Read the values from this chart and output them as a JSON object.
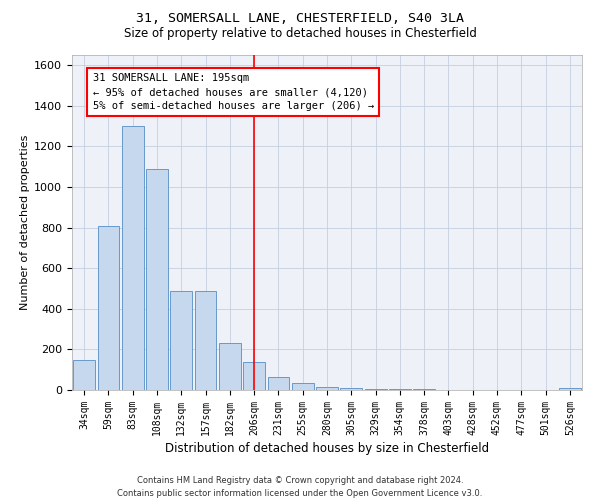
{
  "title1": "31, SOMERSALL LANE, CHESTERFIELD, S40 3LA",
  "title2": "Size of property relative to detached houses in Chesterfield",
  "xlabel": "Distribution of detached houses by size in Chesterfield",
  "ylabel": "Number of detached properties",
  "categories": [
    "34sqm",
    "59sqm",
    "83sqm",
    "108sqm",
    "132sqm",
    "157sqm",
    "182sqm",
    "206sqm",
    "231sqm",
    "255sqm",
    "280sqm",
    "305sqm",
    "329sqm",
    "354sqm",
    "378sqm",
    "403sqm",
    "428sqm",
    "452sqm",
    "477sqm",
    "501sqm",
    "526sqm"
  ],
  "values": [
    150,
    810,
    1300,
    1090,
    490,
    490,
    230,
    140,
    65,
    35,
    15,
    8,
    5,
    5,
    3,
    2,
    2,
    1,
    1,
    1,
    8
  ],
  "bar_color": "#c5d8ee",
  "bar_edge_color": "#6699cc",
  "red_line_x": 7.0,
  "annotation_title": "31 SOMERSALL LANE: 195sqm",
  "annotation_line1": "← 95% of detached houses are smaller (4,120)",
  "annotation_line2": "5% of semi-detached houses are larger (206) →",
  "ylim": [
    0,
    1650
  ],
  "yticks": [
    0,
    200,
    400,
    600,
    800,
    1000,
    1200,
    1400,
    1600
  ],
  "footer1": "Contains HM Land Registry data © Crown copyright and database right 2024.",
  "footer2": "Contains public sector information licensed under the Open Government Licence v3.0.",
  "bg_color": "#eef2f8",
  "grid_color": "#c5cfe0"
}
